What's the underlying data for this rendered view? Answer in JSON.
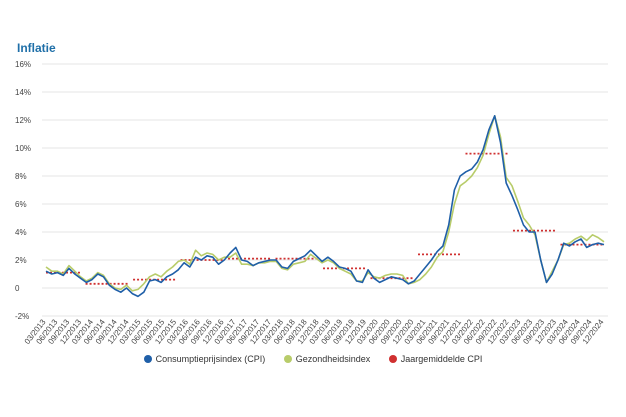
{
  "chart_data": {
    "type": "line",
    "title": "Inflatie",
    "ylim": [
      -2,
      16
    ],
    "y_ticks": [
      "16%",
      "14%",
      "12%",
      "10%",
      "8%",
      "6%",
      "4%",
      "2%",
      "0",
      "-2%"
    ],
    "x_tick_labels": [
      "03/2013",
      "06/2013",
      "09/2013",
      "12/2013",
      "03/2014",
      "06/2014",
      "09/2014",
      "12/2014",
      "03/2015",
      "06/2015",
      "09/2015",
      "12/2015",
      "03/2016",
      "06/2016",
      "09/2016",
      "12/2016",
      "03/2017",
      "06/2017",
      "09/2017",
      "12/2017",
      "03/2018",
      "06/2018",
      "09/2018",
      "12/2018",
      "03/2019",
      "06/2019",
      "09/2019",
      "12/2019",
      "03/2020",
      "06/2020",
      "09/2020",
      "12/2020",
      "03/2021",
      "06/2021",
      "09/2021",
      "12/2021",
      "03/2022",
      "06/2022",
      "09/2022",
      "12/2022",
      "03/2023",
      "06/2023",
      "09/2023",
      "12/2023",
      "03/2024",
      "06/2024",
      "09/2024",
      "12/2024"
    ],
    "grid": true,
    "legend_position": "bottom",
    "series": [
      {
        "name": "Consumptieprijsindex (CPI)",
        "color": "#1f5fa8",
        "values": [
          1.2,
          1.0,
          1.1,
          0.9,
          1.4,
          1.0,
          0.7,
          0.4,
          0.6,
          1.0,
          0.8,
          0.2,
          -0.1,
          -0.3,
          0.0,
          -0.4,
          -0.6,
          -0.3,
          0.5,
          0.6,
          0.4,
          0.8,
          1.0,
          1.3,
          1.8,
          1.5,
          2.2,
          2.0,
          2.3,
          2.2,
          1.7,
          2.0,
          2.5,
          2.9,
          2.0,
          1.9,
          1.6,
          1.8,
          1.9,
          2.0,
          2.0,
          1.5,
          1.4,
          1.9,
          2.1,
          2.3,
          2.7,
          2.3,
          1.9,
          2.2,
          1.9,
          1.5,
          1.4,
          1.2,
          0.5,
          0.4,
          1.3,
          0.7,
          0.4,
          0.6,
          0.8,
          0.7,
          0.6,
          0.3,
          0.5,
          1.0,
          1.5,
          2.0,
          2.6,
          3.0,
          4.5,
          7.0,
          8.0,
          8.3,
          8.5,
          9.0,
          9.9,
          11.3,
          12.3,
          10.4,
          7.5,
          6.6,
          5.6,
          4.5,
          4.0,
          4.0,
          2.0,
          0.4,
          1.0,
          2.0,
          3.2,
          3.0,
          3.3,
          3.5,
          2.9,
          3.1,
          3.2,
          3.1
        ]
      },
      {
        "name": "Gezondheidsindex",
        "color": "#b8cc6a",
        "values": [
          1.5,
          1.2,
          1.2,
          1.0,
          1.6,
          1.2,
          0.8,
          0.5,
          0.7,
          1.1,
          0.9,
          0.3,
          0.0,
          -0.1,
          0.2,
          -0.2,
          -0.1,
          0.3,
          0.8,
          1.0,
          0.8,
          1.2,
          1.5,
          1.9,
          2.0,
          1.7,
          2.7,
          2.3,
          2.5,
          2.4,
          2.0,
          2.2,
          2.2,
          2.5,
          1.7,
          1.7,
          1.6,
          1.8,
          1.8,
          1.9,
          1.9,
          1.4,
          1.3,
          1.7,
          1.8,
          1.9,
          2.4,
          2.1,
          1.8,
          2.0,
          1.8,
          1.4,
          1.2,
          1.0,
          0.5,
          0.5,
          1.1,
          0.8,
          0.7,
          0.9,
          1.0,
          1.0,
          0.9,
          0.3,
          0.4,
          0.6,
          1.0,
          1.5,
          2.2,
          2.6,
          4.0,
          6.0,
          7.3,
          7.6,
          8.0,
          8.6,
          9.5,
          11.0,
          12.3,
          10.8,
          7.9,
          7.3,
          6.2,
          5.0,
          4.5,
          3.8,
          2.0,
          0.4,
          1.2,
          2.0,
          3.1,
          3.2,
          3.5,
          3.7,
          3.4,
          3.8,
          3.6,
          3.3
        ]
      },
      {
        "name": "Jaargemiddelde CPI",
        "color": "#d03030",
        "segments": [
          {
            "from": "01/2013",
            "to": "12/2013",
            "value": 1.1
          },
          {
            "from": "01/2014",
            "to": "12/2014",
            "value": 0.3
          },
          {
            "from": "01/2015",
            "to": "12/2015",
            "value": 0.6
          },
          {
            "from": "01/2016",
            "to": "12/2016",
            "value": 2.0
          },
          {
            "from": "01/2017",
            "to": "12/2017",
            "value": 2.1
          },
          {
            "from": "01/2018",
            "to": "12/2018",
            "value": 2.1
          },
          {
            "from": "01/2019",
            "to": "12/2019",
            "value": 1.4
          },
          {
            "from": "01/2020",
            "to": "12/2020",
            "value": 0.7
          },
          {
            "from": "01/2021",
            "to": "12/2021",
            "value": 2.4
          },
          {
            "from": "01/2022",
            "to": "12/2022",
            "value": 9.6
          },
          {
            "from": "01/2023",
            "to": "12/2023",
            "value": 4.1
          },
          {
            "from": "01/2024",
            "to": "12/2024",
            "value": 3.1
          }
        ]
      }
    ]
  }
}
